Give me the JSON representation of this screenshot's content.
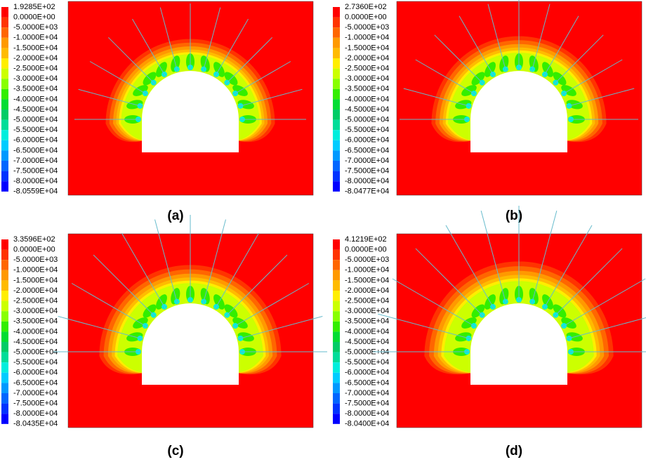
{
  "legend_colors": [
    "#ff0000",
    "#ff3300",
    "#ff6600",
    "#ff9900",
    "#ffbb00",
    "#ffee00",
    "#ccff00",
    "#88ff00",
    "#33ee00",
    "#00dd33",
    "#00cc66",
    "#00dd99",
    "#00eedd",
    "#00ccff",
    "#0099ff",
    "#0066ff",
    "#0033ff",
    "#0000ff"
  ],
  "panels": [
    {
      "caption": "(a)",
      "legend": [
        "1.9285E+02",
        "0.0000E+00",
        "-5.0000E+03",
        "-1.0000E+04",
        "-1.5000E+04",
        "-2.0000E+04",
        "-2.5000E+04",
        "-3.0000E+04",
        "-3.5000E+04",
        "-4.0000E+04",
        "-4.5000E+04",
        "-5.0000E+04",
        "-5.5000E+04",
        "-6.0000E+04",
        "-6.5000E+04",
        "-7.0000E+04",
        "-7.5000E+04",
        "-8.0000E+04",
        "-8.0559E+04"
      ]
    },
    {
      "caption": "(b)",
      "legend": [
        "2.7360E+02",
        "0.0000E+00",
        "-5.0000E+03",
        "-1.0000E+04",
        "-1.5000E+04",
        "-2.0000E+04",
        "-2.5000E+04",
        "-3.0000E+04",
        "-3.5000E+04",
        "-4.0000E+04",
        "-4.5000E+04",
        "-5.0000E+04",
        "-5.5000E+04",
        "-6.0000E+04",
        "-6.5000E+04",
        "-7.0000E+04",
        "-7.5000E+04",
        "-8.0000E+04",
        "-8.0477E+04"
      ]
    },
    {
      "caption": "(c)",
      "legend": [
        "3.3596E+02",
        "0.0000E+00",
        "-5.0000E+03",
        "-1.0000E+04",
        "-1.5000E+04",
        "-2.0000E+04",
        "-2.5000E+04",
        "-3.0000E+04",
        "-3.5000E+04",
        "-4.0000E+04",
        "-4.5000E+04",
        "-5.0000E+04",
        "-5.5000E+04",
        "-6.0000E+04",
        "-6.5000E+04",
        "-7.0000E+04",
        "-7.5000E+04",
        "-8.0000E+04",
        "-8.0435E+04"
      ]
    },
    {
      "caption": "(d)",
      "legend": [
        "4.1219E+02",
        "0.0000E+00",
        "-5.0000E+03",
        "-1.0000E+04",
        "-1.5000E+04",
        "-2.0000E+04",
        "-2.5000E+04",
        "-3.0000E+04",
        "-3.5000E+04",
        "-4.0000E+04",
        "-4.5000E+04",
        "-5.0000E+04",
        "-5.5000E+04",
        "-6.0000E+04",
        "-6.5000E+04",
        "-7.0000E+04",
        "-7.5000E+04",
        "-8.0000E+04",
        "-8.0400E+04"
      ]
    }
  ]
}
